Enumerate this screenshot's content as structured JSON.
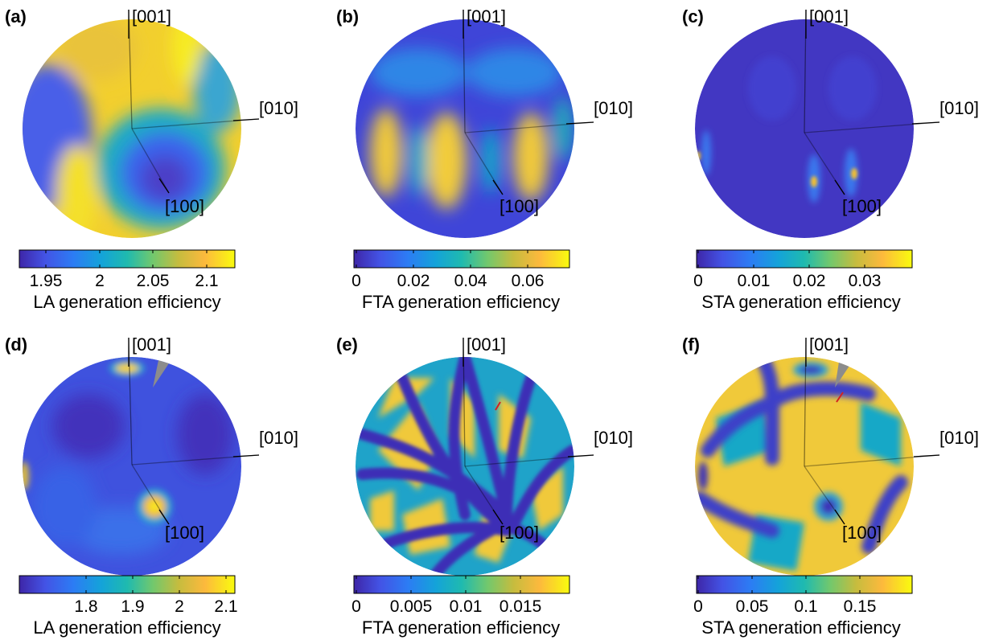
{
  "figure": {
    "panels": [
      {
        "label": "(a)",
        "axes": {
          "z": "[001]",
          "y": "[010]",
          "x": "[100]"
        },
        "colorbar": {
          "title": "LA generation efficiency",
          "ticks": [
            "1.95",
            "2",
            "2.05",
            "2.1"
          ]
        }
      },
      {
        "label": "(b)",
        "axes": {
          "z": "[001]",
          "y": "[010]",
          "x": "[100]"
        },
        "colorbar": {
          "title": "FTA generation efficiency",
          "ticks": [
            "0",
            "0.02",
            "0.04",
            "0.06"
          ]
        }
      },
      {
        "label": "(c)",
        "axes": {
          "z": "[001]",
          "y": "[010]",
          "x": "[100]"
        },
        "colorbar": {
          "title": "STA generation efficiency",
          "ticks": [
            "0",
            "0.01",
            "0.02",
            "0.03"
          ]
        }
      },
      {
        "label": "(d)",
        "axes": {
          "z": "[001]",
          "y": "[010]",
          "x": "[100]"
        },
        "colorbar": {
          "title": "LA generation efficiency",
          "ticks": [
            "1.8",
            "1.9",
            "2",
            "2.1"
          ]
        }
      },
      {
        "label": "(e)",
        "axes": {
          "z": "[001]",
          "y": "[010]",
          "x": "[100]"
        },
        "colorbar": {
          "title": "FTA generation efficiency",
          "ticks": [
            "0",
            "0.005",
            "0.01",
            "0.015"
          ]
        }
      },
      {
        "label": "(f)",
        "axes": {
          "z": "[001]",
          "y": "[010]",
          "x": "[100]"
        },
        "colorbar": {
          "title": "STA generation efficiency",
          "ticks": [
            "0",
            "0.05",
            "0.1",
            "0.15"
          ]
        }
      }
    ],
    "colormap": [
      "#3e26a8",
      "#4353e5",
      "#2c7cf4",
      "#14a3d9",
      "#1fbaaf",
      "#72c86d",
      "#c6bc3e",
      "#fcb93d",
      "#f5e626",
      "#f9fb0e"
    ]
  }
}
